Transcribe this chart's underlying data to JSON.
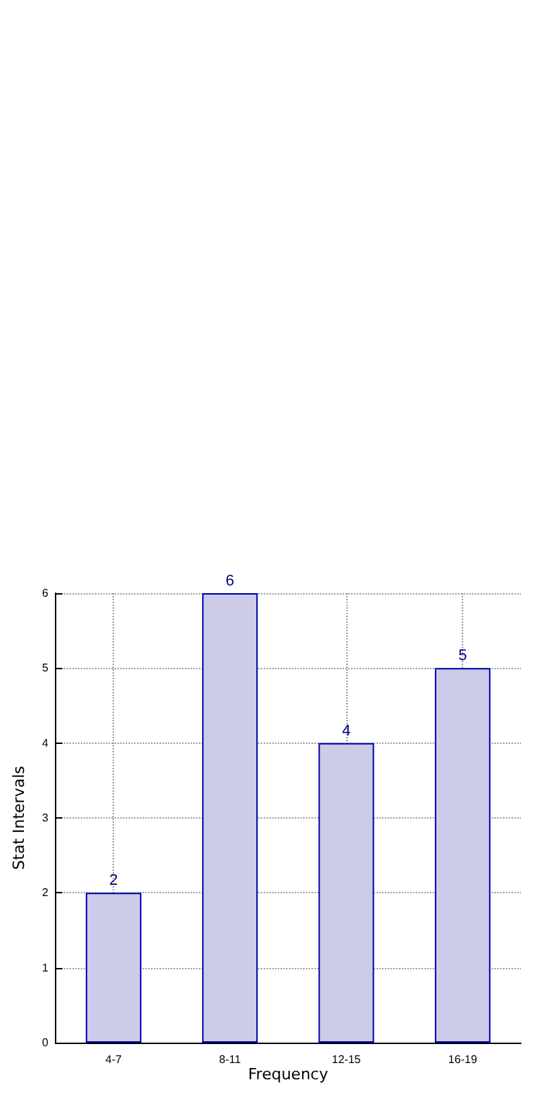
{
  "chart_data": {
    "type": "bar",
    "xlabel": "Frequency",
    "ylabel": "Stat Intervals",
    "categories": [
      "4-7",
      "8-11",
      "12-15",
      "16-19"
    ],
    "values": [
      2,
      6,
      4,
      5
    ],
    "color": "#ccccea",
    "ylim": [
      0,
      6
    ],
    "yticks": [
      0,
      1,
      2,
      3,
      4,
      5,
      6
    ],
    "grid": true,
    "data_labels": true
  }
}
